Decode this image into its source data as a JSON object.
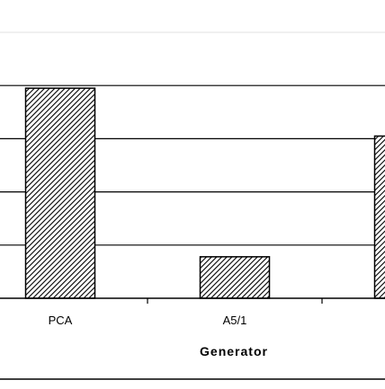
{
  "chart_data": {
    "type": "bar",
    "categories": [
      "PCA",
      "A5/1",
      ""
    ],
    "values": [
      3.95,
      0.78,
      3.05
    ],
    "xlabel": "Generator",
    "ylabel": "",
    "ylim": [
      0,
      5
    ],
    "y_gridlines": [
      1,
      2,
      3,
      4,
      5
    ],
    "grid": true,
    "bar_pattern": "diagonal-hatch",
    "colors": {
      "bar_fill": "#ffffff",
      "hatch": "#000000",
      "grid": "#000000",
      "background": "#ffffff"
    }
  }
}
